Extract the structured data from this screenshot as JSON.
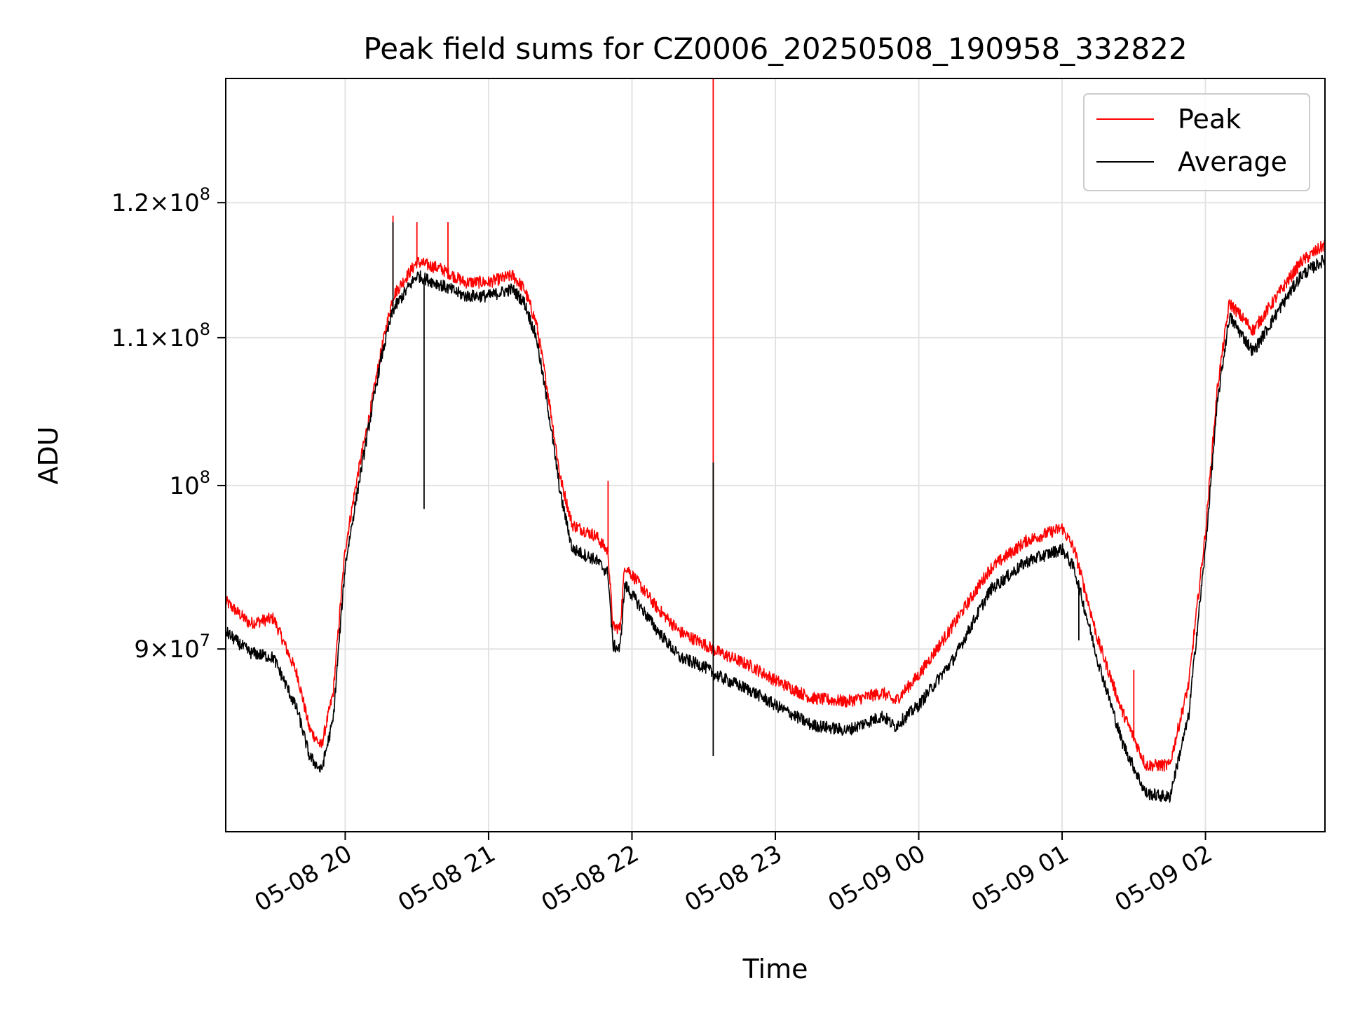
{
  "chart_data": {
    "type": "line",
    "title": "Peak field sums for CZ0006_20250508_190958_332822",
    "xlabel": "Time",
    "ylabel": "ADU",
    "yscale": "log",
    "grid": true,
    "legend_position": "top-right",
    "xlim": [
      "2025-05-08 19:10",
      "2025-05-09 02:50"
    ],
    "ylim": [
      80000000,
      130000000
    ],
    "x_ticks": [
      {
        "t": "2025-05-08 20:00",
        "label": "05-08 20"
      },
      {
        "t": "2025-05-08 21:00",
        "label": "05-08 21"
      },
      {
        "t": "2025-05-08 22:00",
        "label": "05-08 22"
      },
      {
        "t": "2025-05-08 23:00",
        "label": "05-08 23"
      },
      {
        "t": "2025-05-09 00:00",
        "label": "05-09 00"
      },
      {
        "t": "2025-05-09 01:00",
        "label": "05-09 01"
      },
      {
        "t": "2025-05-09 02:00",
        "label": "05-09 02"
      }
    ],
    "y_ticks": [
      {
        "value": 90000000,
        "mant": "9",
        "exp": "7"
      },
      {
        "value": 100000000,
        "mant": "",
        "exp": "8"
      },
      {
        "value": 110000000,
        "mant": "1.1",
        "exp": "8"
      },
      {
        "value": 120000000,
        "mant": "1.2",
        "exp": "8"
      }
    ],
    "series": [
      {
        "name": "Peak",
        "color": "#ff0000",
        "points": [
          [
            "2025-05-08 19:10",
            92800000
          ],
          [
            "2025-05-08 19:20",
            91500000
          ],
          [
            "2025-05-08 19:30",
            91800000
          ],
          [
            "2025-05-08 19:40",
            88500000
          ],
          [
            "2025-05-08 19:45",
            85500000
          ],
          [
            "2025-05-08 19:50",
            84500000
          ],
          [
            "2025-05-08 19:55",
            87500000
          ],
          [
            "2025-05-08 20:00",
            96000000
          ],
          [
            "2025-05-08 20:05",
            100500000
          ],
          [
            "2025-05-08 20:10",
            104500000
          ],
          [
            "2025-05-08 20:15",
            109000000
          ],
          [
            "2025-05-08 20:20",
            113000000
          ],
          [
            "2025-05-08 20:30",
            115500000
          ],
          [
            "2025-05-08 20:40",
            115000000
          ],
          [
            "2025-05-08 20:50",
            114000000
          ],
          [
            "2025-05-08 21:00",
            114000000
          ],
          [
            "2025-05-08 21:10",
            114500000
          ],
          [
            "2025-05-08 21:15",
            113500000
          ],
          [
            "2025-05-08 21:20",
            111000000
          ],
          [
            "2025-05-08 21:25",
            106000000
          ],
          [
            "2025-05-08 21:30",
            100500000
          ],
          [
            "2025-05-08 21:35",
            97500000
          ],
          [
            "2025-05-08 21:45",
            96800000
          ],
          [
            "2025-05-08 21:50",
            95800000
          ],
          [
            "2025-05-08 21:52",
            91300000
          ],
          [
            "2025-05-08 21:55",
            91200000
          ],
          [
            "2025-05-08 21:57",
            95000000
          ],
          [
            "2025-05-08 22:10",
            92500000
          ],
          [
            "2025-05-08 22:20",
            91000000
          ],
          [
            "2025-05-08 22:30",
            90300000
          ],
          [
            "2025-05-08 22:35",
            89900000
          ],
          [
            "2025-05-08 22:50",
            89000000
          ],
          [
            "2025-05-08 23:00",
            88200000
          ],
          [
            "2025-05-08 23:15",
            87200000
          ],
          [
            "2025-05-08 23:30",
            87000000
          ],
          [
            "2025-05-08 23:45",
            87500000
          ],
          [
            "2025-05-08 23:50",
            87000000
          ],
          [
            "2025-05-09 00:00",
            88500000
          ],
          [
            "2025-05-09 00:15",
            91500000
          ],
          [
            "2025-05-09 00:30",
            94800000
          ],
          [
            "2025-05-09 00:45",
            96500000
          ],
          [
            "2025-05-09 01:00",
            97300000
          ],
          [
            "2025-05-09 01:05",
            96000000
          ],
          [
            "2025-05-09 01:15",
            90500000
          ],
          [
            "2025-05-09 01:25",
            86500000
          ],
          [
            "2025-05-09 01:35",
            83500000
          ],
          [
            "2025-05-09 01:45",
            83500000
          ],
          [
            "2025-05-09 01:53",
            88000000
          ],
          [
            "2025-05-09 02:00",
            97000000
          ],
          [
            "2025-05-09 02:05",
            106500000
          ],
          [
            "2025-05-09 02:10",
            112500000
          ],
          [
            "2025-05-09 02:20",
            110500000
          ],
          [
            "2025-05-09 02:30",
            113000000
          ],
          [
            "2025-05-09 02:40",
            115500000
          ],
          [
            "2025-05-09 02:50",
            116800000
          ]
        ],
        "spikes": [
          {
            "t": "2025-05-08 20:20",
            "value": 119000000
          },
          {
            "t": "2025-05-08 20:30",
            "value": 118500000
          },
          {
            "t": "2025-05-08 20:43",
            "value": 118500000
          },
          {
            "t": "2025-05-08 21:50",
            "value": 100300000
          },
          {
            "t": "2025-05-08 22:34",
            "value": 130000000
          },
          {
            "t": "2025-05-09 01:30",
            "value": 88800000
          }
        ]
      },
      {
        "name": "Average",
        "color": "#000000",
        "points": [
          [
            "2025-05-08 19:10",
            91000000
          ],
          [
            "2025-05-08 19:20",
            89800000
          ],
          [
            "2025-05-08 19:30",
            89500000
          ],
          [
            "2025-05-08 19:40",
            86500000
          ],
          [
            "2025-05-08 19:45",
            84000000
          ],
          [
            "2025-05-08 19:50",
            83200000
          ],
          [
            "2025-05-08 19:55",
            86000000
          ],
          [
            "2025-05-08 20:00",
            95000000
          ],
          [
            "2025-05-08 20:05",
            99500000
          ],
          [
            "2025-05-08 20:10",
            104000000
          ],
          [
            "2025-05-08 20:15",
            108500000
          ],
          [
            "2025-05-08 20:20",
            112000000
          ],
          [
            "2025-05-08 20:30",
            114500000
          ],
          [
            "2025-05-08 20:40",
            113800000
          ],
          [
            "2025-05-08 20:50",
            113000000
          ],
          [
            "2025-05-08 21:00",
            113000000
          ],
          [
            "2025-05-08 21:10",
            113500000
          ],
          [
            "2025-05-08 21:15",
            112500000
          ],
          [
            "2025-05-08 21:20",
            110000000
          ],
          [
            "2025-05-08 21:25",
            105000000
          ],
          [
            "2025-05-08 21:30",
            99500000
          ],
          [
            "2025-05-08 21:35",
            96000000
          ],
          [
            "2025-05-08 21:45",
            95300000
          ],
          [
            "2025-05-08 21:50",
            94500000
          ],
          [
            "2025-05-08 21:52",
            90200000
          ],
          [
            "2025-05-08 21:55",
            90000000
          ],
          [
            "2025-05-08 21:57",
            93800000
          ],
          [
            "2025-05-08 22:10",
            91200000
          ],
          [
            "2025-05-08 22:20",
            89500000
          ],
          [
            "2025-05-08 22:30",
            89000000
          ],
          [
            "2025-05-08 22:35",
            88500000
          ],
          [
            "2025-05-08 22:50",
            87600000
          ],
          [
            "2025-05-08 23:00",
            86800000
          ],
          [
            "2025-05-08 23:15",
            85700000
          ],
          [
            "2025-05-08 23:30",
            85400000
          ],
          [
            "2025-05-08 23:45",
            86200000
          ],
          [
            "2025-05-08 23:50",
            85600000
          ],
          [
            "2025-05-09 00:00",
            86800000
          ],
          [
            "2025-05-09 00:15",
            89500000
          ],
          [
            "2025-05-09 00:30",
            93500000
          ],
          [
            "2025-05-09 00:45",
            95200000
          ],
          [
            "2025-05-09 01:00",
            96000000
          ],
          [
            "2025-05-09 01:05",
            94800000
          ],
          [
            "2025-05-09 01:15",
            89300000
          ],
          [
            "2025-05-09 01:25",
            84800000
          ],
          [
            "2025-05-09 01:35",
            82000000
          ],
          [
            "2025-05-09 01:45",
            81800000
          ],
          [
            "2025-05-09 01:53",
            86200000
          ],
          [
            "2025-05-09 02:00",
            96000000
          ],
          [
            "2025-05-09 02:05",
            105500000
          ],
          [
            "2025-05-09 02:10",
            111500000
          ],
          [
            "2025-05-09 02:20",
            109000000
          ],
          [
            "2025-05-09 02:30",
            111800000
          ],
          [
            "2025-05-09 02:40",
            114500000
          ],
          [
            "2025-05-09 02:50",
            115700000
          ]
        ],
        "spikes": [
          {
            "t": "2025-05-08 20:20",
            "value": 118500000
          },
          {
            "t": "2025-05-08 20:33",
            "value": 98500000
          },
          {
            "t": "2025-05-08 22:34",
            "value": 101500000
          },
          {
            "t": "2025-05-08 22:34",
            "value": 84000000
          },
          {
            "t": "2025-05-09 01:07",
            "value": 90500000
          }
        ]
      }
    ]
  }
}
